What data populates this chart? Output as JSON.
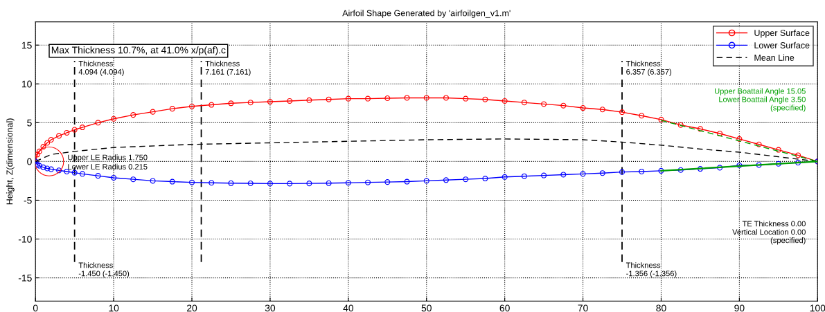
{
  "chart_data": {
    "type": "line",
    "title": "Airfoil Shape Generated by 'airfoilgen_v1.m'",
    "ylabel": "Height, Z(dimensional)",
    "xlim": [
      0,
      100
    ],
    "ylim": [
      -18,
      18
    ],
    "xticks": [
      0,
      10,
      20,
      30,
      40,
      50,
      60,
      70,
      80,
      90,
      100
    ],
    "yticks": [
      -15,
      -10,
      -5,
      0,
      5,
      10,
      15
    ],
    "grid": true,
    "legend": "top right",
    "series": [
      {
        "name": "Upper Surface",
        "color": "#ff0000",
        "marker": "circle",
        "line_style": "solid",
        "x": [
          0,
          0.25,
          0.5,
          1,
          1.5,
          2,
          3,
          4,
          5,
          6,
          8,
          10,
          12.5,
          15,
          17.5,
          20,
          22.5,
          25,
          27.5,
          30,
          32.5,
          35,
          37.5,
          40,
          42.5,
          45,
          47.5,
          50,
          52.5,
          55,
          57.5,
          60,
          62.5,
          65,
          67.5,
          70,
          72.5,
          75,
          77.5,
          80,
          82.5,
          85,
          87.5,
          90,
          92.5,
          95,
          97.5,
          100
        ],
        "values": [
          0,
          0.9,
          1.3,
          1.9,
          2.4,
          2.8,
          3.3,
          3.7,
          4.09,
          4.4,
          5.0,
          5.5,
          6.0,
          6.4,
          6.8,
          7.1,
          7.3,
          7.5,
          7.6,
          7.7,
          7.8,
          7.9,
          8.0,
          8.1,
          8.1,
          8.15,
          8.2,
          8.2,
          8.2,
          8.1,
          8.0,
          7.8,
          7.6,
          7.4,
          7.2,
          6.9,
          6.7,
          6.36,
          5.9,
          5.4,
          4.7,
          4.2,
          3.6,
          2.9,
          2.2,
          1.5,
          0.8,
          0
        ]
      },
      {
        "name": "Lower Surface",
        "color": "#0000ff",
        "marker": "circle",
        "line_style": "solid",
        "x": [
          0,
          0.25,
          0.5,
          1,
          1.5,
          2,
          3,
          4,
          5,
          6,
          8,
          10,
          12.5,
          15,
          17.5,
          20,
          22.5,
          25,
          27.5,
          30,
          32.5,
          35,
          37.5,
          40,
          42.5,
          45,
          47.5,
          50,
          52.5,
          55,
          57.5,
          60,
          62.5,
          65,
          67.5,
          70,
          72.5,
          75,
          77.5,
          80,
          82.5,
          85,
          87.5,
          90,
          92.5,
          95,
          97.5,
          100
        ],
        "values": [
          0,
          -0.4,
          -0.55,
          -0.75,
          -0.9,
          -1.0,
          -1.15,
          -1.3,
          -1.45,
          -1.6,
          -1.85,
          -2.1,
          -2.3,
          -2.5,
          -2.6,
          -2.7,
          -2.75,
          -2.8,
          -2.82,
          -2.85,
          -2.85,
          -2.83,
          -2.8,
          -2.75,
          -2.7,
          -2.65,
          -2.6,
          -2.5,
          -2.4,
          -2.3,
          -2.2,
          -2.0,
          -1.9,
          -1.8,
          -1.7,
          -1.6,
          -1.5,
          -1.36,
          -1.3,
          -1.2,
          -1.1,
          -0.95,
          -0.8,
          -0.5,
          -0.45,
          -0.3,
          -0.15,
          0
        ]
      },
      {
        "name": "Mean Line",
        "color": "#000000",
        "marker": "none",
        "line_style": "dashed",
        "x": [
          0,
          2,
          5,
          10,
          20,
          30,
          40,
          50,
          60,
          70,
          75,
          80,
          85,
          90,
          95,
          100
        ],
        "values": [
          0,
          0.9,
          1.3,
          1.8,
          2.2,
          2.4,
          2.6,
          2.8,
          2.9,
          2.8,
          2.5,
          2.1,
          1.6,
          1.2,
          0.6,
          0
        ]
      },
      {
        "color": "#00a000",
        "marker": "none",
        "line_style": "dashed",
        "x": [
          80,
          100
        ],
        "values": [
          5.3,
          0
        ]
      },
      {
        "color": "#00a000",
        "marker": "none",
        "line_style": "solid",
        "x": [
          80,
          100
        ],
        "values": [
          -1.2,
          0
        ]
      },
      {
        "type": "scatter",
        "color": "#ff0000",
        "marker": "circle",
        "x": [
          1.75
        ],
        "values": [
          0
        ]
      }
    ],
    "ref_lines": [
      {
        "axis": "x",
        "value": 5,
        "color": "#000000",
        "line_style": "dashed"
      },
      {
        "axis": "x",
        "value": 21.2,
        "color": "#000000",
        "line_style": "dashed"
      },
      {
        "axis": "x",
        "value": 75,
        "color": "#000000",
        "line_style": "dashed"
      }
    ],
    "annotations": [
      {
        "text": "Thickness\n4.094 (4.094)",
        "x": 5,
        "y": 13
      },
      {
        "text": "Thickness\n7.161 (7.161)",
        "x": 21.2,
        "y": 13
      },
      {
        "text": "Thickness\n6.357 (6.357)",
        "x": 75,
        "y": 13
      },
      {
        "text": "Thickness\n-1.450 (-1.450)",
        "x": 5,
        "y": -13
      },
      {
        "text": "Thickness\n-1.356 (-1.356)",
        "x": 75,
        "y": -13
      },
      {
        "text": "Upper LE Radius 1.750",
        "x": 3.6,
        "y": 0.9
      },
      {
        "text": "Lower LE Radius 0.215",
        "x": 3.6,
        "y": -0.3
      },
      "Max Thickness 10.7%, at 41.0% x/p(af).c",
      "Upper Boattail Angle 15.05\nLower Boattail Angle 3.50\n(specified)",
      "TE Thickness 0.00\nVertical Location 0.00\n(specified)"
    ]
  }
}
